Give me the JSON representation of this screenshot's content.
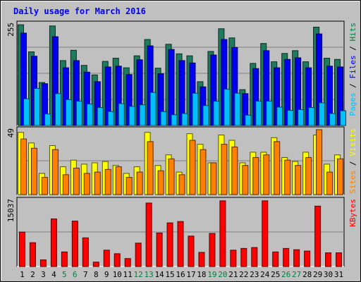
{
  "chart_data": {
    "type": "bar",
    "title": "Daily usage for March 2016",
    "categories": [
      "1",
      "2",
      "3",
      "4",
      "5",
      "6",
      "7",
      "8",
      "9",
      "10",
      "11",
      "12",
      "13",
      "14",
      "15",
      "16",
      "17",
      "18",
      "19",
      "20",
      "21",
      "22",
      "23",
      "24",
      "25",
      "26",
      "27",
      "28",
      "29",
      "30",
      "31"
    ],
    "weekend_days": [
      "5",
      "6",
      "12",
      "13",
      "19",
      "20",
      "26",
      "27"
    ],
    "grid": true,
    "panels": [
      {
        "id": "top",
        "ymax_label": "255",
        "ymax": 255,
        "side_labels": [
          {
            "text": "Pages",
            "color": "#00c0ff"
          },
          {
            "text": " / ",
            "color": "#000000"
          },
          {
            "text": "Files",
            "color": "#0000ff"
          },
          {
            "text": " / ",
            "color": "#000000"
          },
          {
            "text": "Hits",
            "color": "#008040"
          }
        ],
        "series": [
          {
            "name": "Hits",
            "color": "#1e7b5e",
            "values": [
              253,
              185,
              108,
              250,
              163,
              189,
              151,
              127,
              161,
              169,
              145,
              175,
              216,
              144,
              204,
              180,
              175,
              110,
              186,
              243,
              220,
              90,
              156,
              206,
              160,
              181,
              188,
              160,
              247,
              169,
              166
            ]
          },
          {
            "name": "Files",
            "color": "#0000f0",
            "values": [
              232,
              174,
              105,
              223,
              145,
              163,
              134,
              110,
              147,
              149,
              128,
              165,
              200,
              130,
              191,
              163,
              157,
              97,
              177,
              216,
              196,
              80,
              143,
              188,
              145,
              166,
              170,
              145,
              230,
              149,
              147
            ]
          },
          {
            "name": "Pages",
            "color": "#00c0ff",
            "values": [
              67,
              93,
              29,
              80,
              65,
              61,
              54,
              45,
              35,
              55,
              48,
              52,
              83,
              35,
              27,
              30,
              81,
              50,
              61,
              91,
              81,
              26,
              61,
              61,
              46,
              38,
              40,
              45,
              57,
              30,
              37
            ]
          }
        ]
      },
      {
        "id": "middle",
        "ymax_label": "49",
        "ymax": 49,
        "side_labels": [
          {
            "text": "Sites",
            "color": "#ff8000"
          },
          {
            "text": " / ",
            "color": "#000000"
          },
          {
            "text": "Visits",
            "color": "#ffff00"
          }
        ],
        "series": [
          {
            "name": "Visits",
            "color": "#ffff00",
            "values": [
              47,
              39,
              16,
              37,
              21,
              26,
              23,
              24,
              25,
              22,
              16,
              21,
              47,
              22,
              30,
              17,
              46,
              38,
              24,
              45,
              41,
              24,
              32,
              32,
              43,
              28,
              25,
              32,
              45,
              23,
              30
            ]
          },
          {
            "name": "Sites",
            "color": "#ff8000",
            "values": [
              42,
              35,
              13,
              34,
              15,
              20,
              16,
              17,
              19,
              21,
              13,
              17,
              40,
              18,
              27,
              15,
              41,
              34,
              24,
              38,
              36,
              22,
              28,
              30,
              40,
              26,
              22,
              28,
              49,
              17,
              27
            ]
          }
        ]
      },
      {
        "id": "bottom",
        "ymax_label": "15037",
        "ymax": 15037,
        "side_labels": [
          {
            "text": "KBytes",
            "color": "#ff0000"
          }
        ],
        "series": [
          {
            "name": "KBytes",
            "color": "#ff0000",
            "values": [
              7800,
              5400,
              1500,
              10800,
              3300,
              10300,
              6500,
              1000,
              3700,
              2900,
              1800,
              5300,
              14400,
              7600,
              9900,
              10200,
              6900,
              3200,
              7500,
              14900,
              3700,
              4100,
              4300,
              14900,
              3300,
              4100,
              3800,
              3500,
              13700,
              3100,
              3100
            ]
          }
        ]
      }
    ]
  }
}
